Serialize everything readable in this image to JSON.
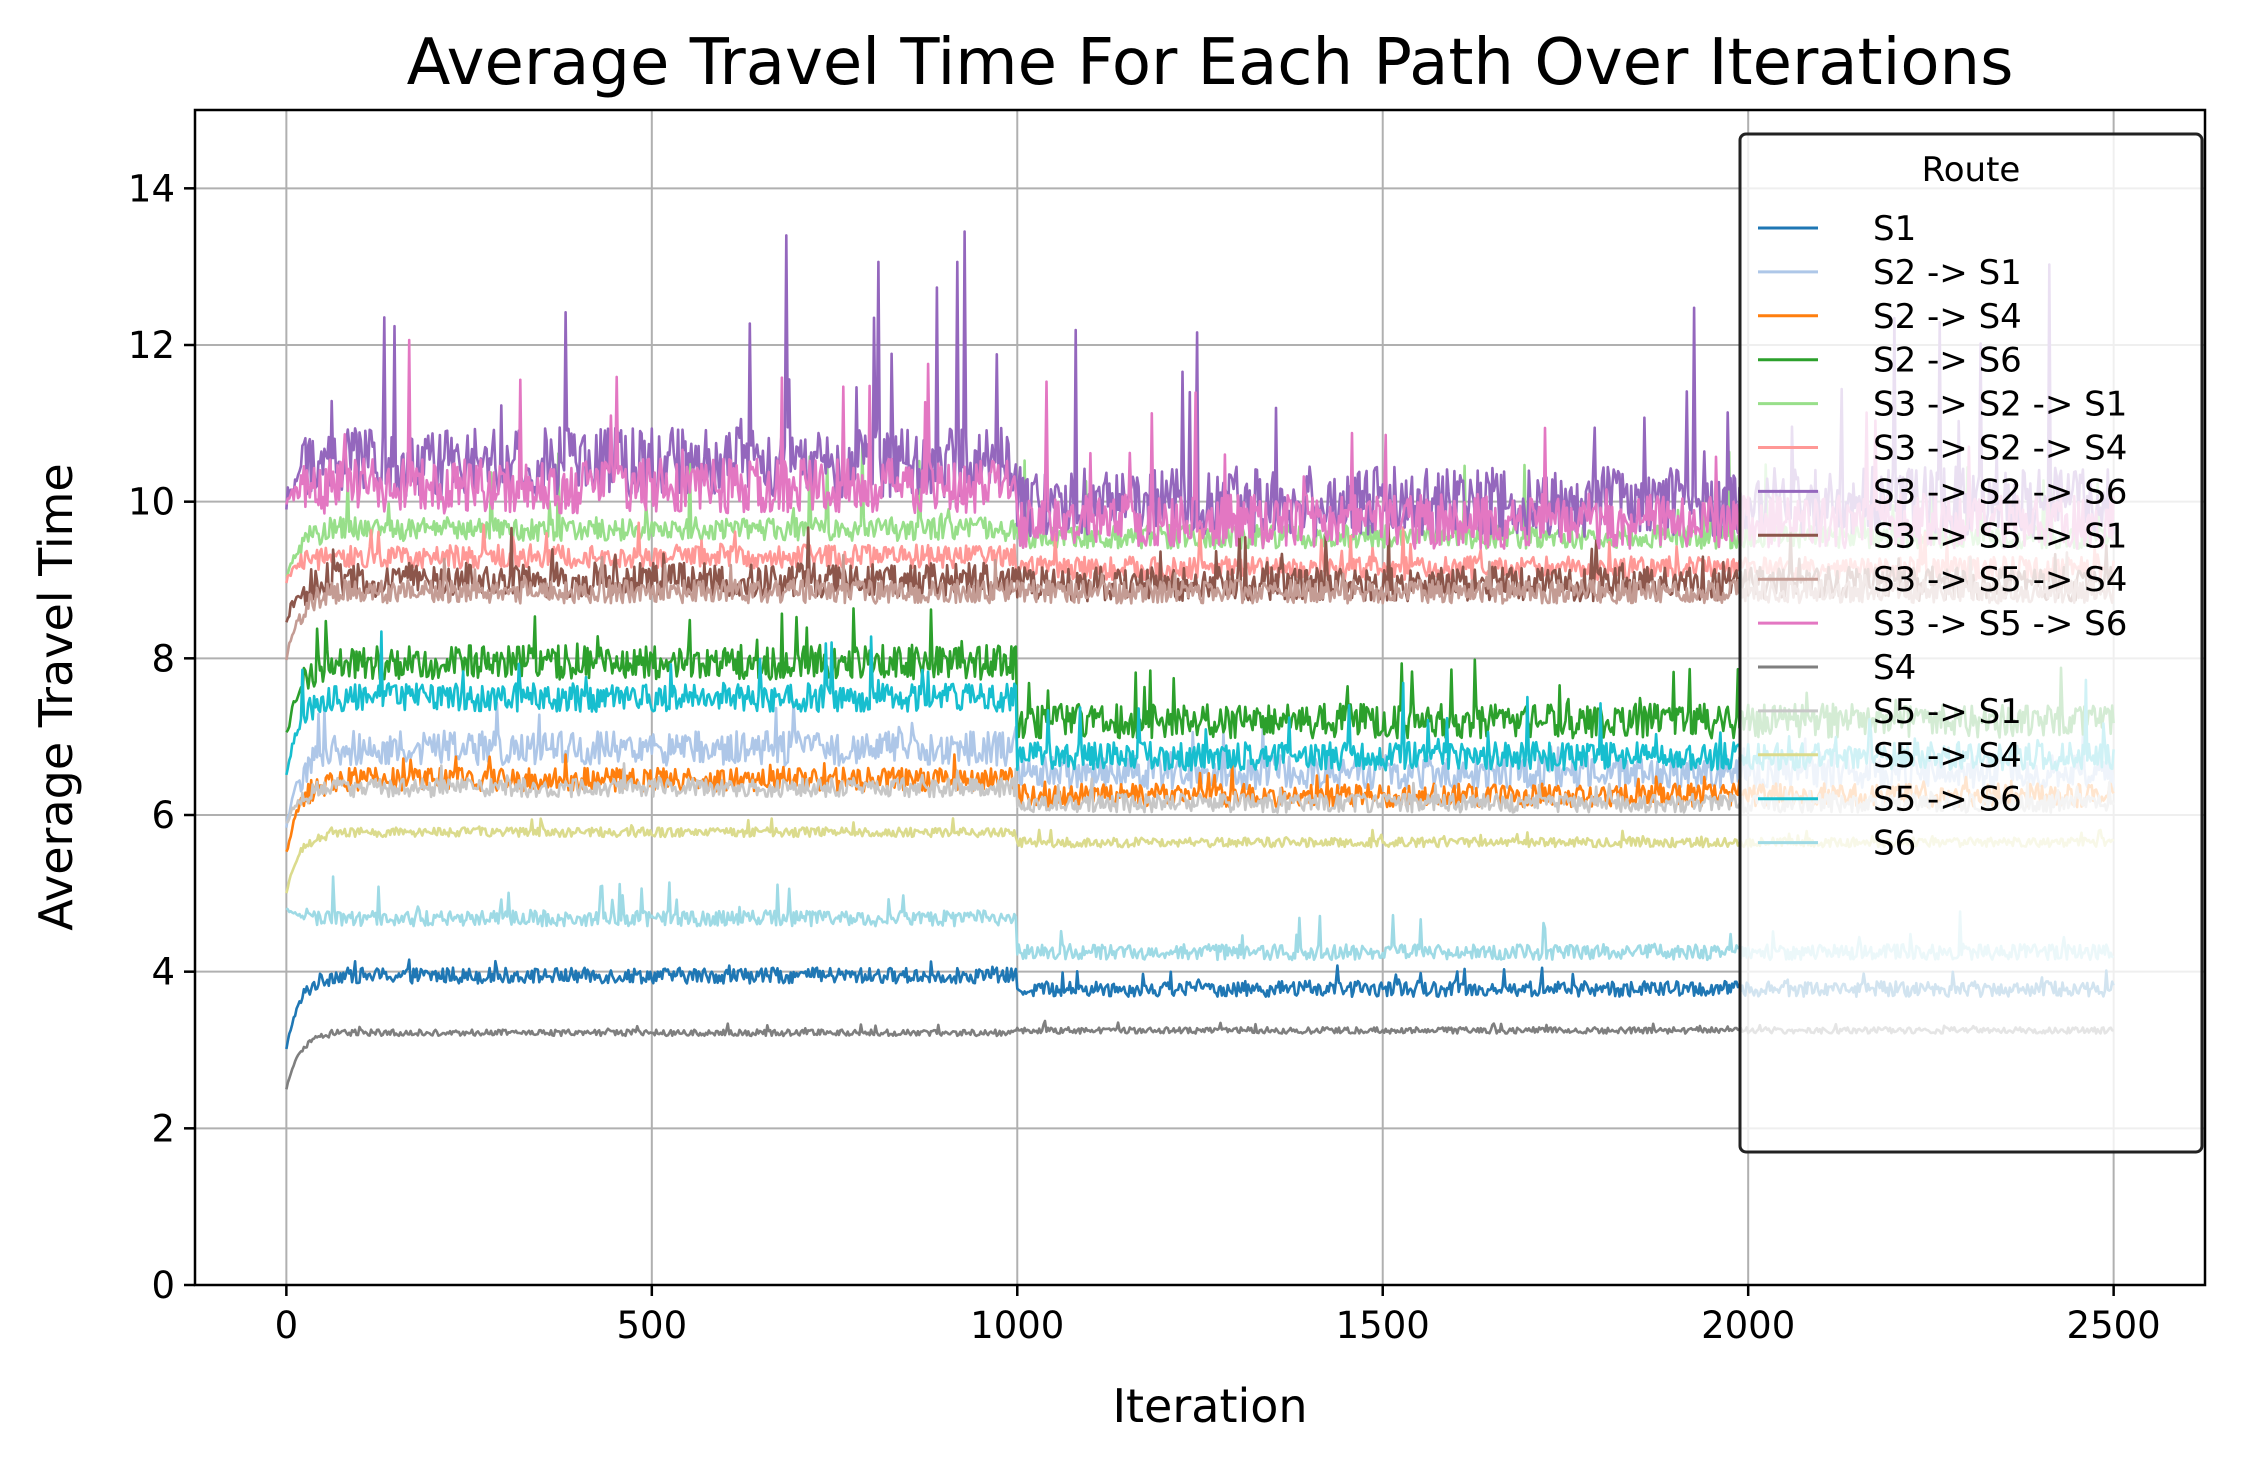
{
  "chart_data": {
    "type": "line",
    "title": "Average Travel Time For Each Path Over Iterations",
    "xlabel": "Iteration",
    "ylabel": "Average Travel Time",
    "xlim": [
      -125,
      2625
    ],
    "ylim": [
      0,
      15
    ],
    "xticks": [
      0,
      500,
      1000,
      1500,
      2000,
      2500
    ],
    "yticks": [
      0,
      2,
      4,
      6,
      8,
      10,
      12,
      14
    ],
    "grid": true,
    "legend": {
      "title": "Route",
      "placement": "upper-right"
    },
    "series": [
      {
        "name": "S1",
        "color": "#1f77b4",
        "start": 3.0,
        "phase1": 3.95,
        "phase2": 3.78,
        "noise": 0.1,
        "spikes": 0.25
      },
      {
        "name": "S2 -> S1",
        "color": "#aec7e8",
        "start": 5.8,
        "phase1": 6.85,
        "phase2": 6.55,
        "noise": 0.22,
        "spikes": 0.5
      },
      {
        "name": "S2 -> S4",
        "color": "#ff7f0e",
        "start": 5.5,
        "phase1": 6.45,
        "phase2": 6.25,
        "noise": 0.15,
        "spikes": 0.35
      },
      {
        "name": "S2 -> S6",
        "color": "#2ca02c",
        "start": 7.0,
        "phase1": 7.95,
        "phase2": 7.2,
        "noise": 0.22,
        "spikes": 0.7
      },
      {
        "name": "S3 -> S2 -> S1",
        "color": "#98df8a",
        "start": 9.0,
        "phase1": 9.65,
        "phase2": 9.55,
        "noise": 0.15,
        "spikes": 1.0
      },
      {
        "name": "S3 -> S2 -> S4",
        "color": "#ff9896",
        "start": 9.0,
        "phase1": 9.3,
        "phase2": 9.15,
        "noise": 0.15,
        "spikes": 0.5
      },
      {
        "name": "S3 -> S2 -> S6",
        "color": "#9467bd",
        "start": 10.0,
        "phase1": 10.5,
        "phase2": 10.0,
        "noise": 0.45,
        "spikes": 2.8
      },
      {
        "name": "S3 -> S5 -> S1",
        "color": "#8c564b",
        "start": 8.5,
        "phase1": 9.0,
        "phase2": 8.95,
        "noise": 0.22,
        "spikes": 0.6
      },
      {
        "name": "S3 -> S5 -> S4",
        "color": "#c49c94",
        "start": 8.0,
        "phase1": 8.85,
        "phase2": 8.85,
        "noise": 0.15,
        "spikes": 0.4
      },
      {
        "name": "S3 -> S5 -> S6",
        "color": "#e377c2",
        "start": 10.0,
        "phase1": 10.2,
        "phase2": 9.75,
        "noise": 0.35,
        "spikes": 1.6
      },
      {
        "name": "S4",
        "color": "#7f7f7f",
        "start": 2.5,
        "phase1": 3.22,
        "phase2": 3.25,
        "noise": 0.04,
        "spikes": 0.1
      },
      {
        "name": "S5 -> S1",
        "color": "#c7c7c7",
        "start": 5.9,
        "phase1": 6.35,
        "phase2": 6.15,
        "noise": 0.12,
        "spikes": 0.3
      },
      {
        "name": "S5 -> S4",
        "color": "#dbdb8d",
        "start": 5.0,
        "phase1": 5.78,
        "phase2": 5.65,
        "noise": 0.06,
        "spikes": 0.15
      },
      {
        "name": "S5 -> S6",
        "color": "#17becf",
        "start": 6.5,
        "phase1": 7.5,
        "phase2": 6.75,
        "noise": 0.18,
        "spikes": 0.8
      },
      {
        "name": "S6",
        "color": "#9edae5",
        "start": 4.8,
        "phase1": 4.68,
        "phase2": 4.25,
        "noise": 0.1,
        "spikes": 0.5
      }
    ]
  }
}
